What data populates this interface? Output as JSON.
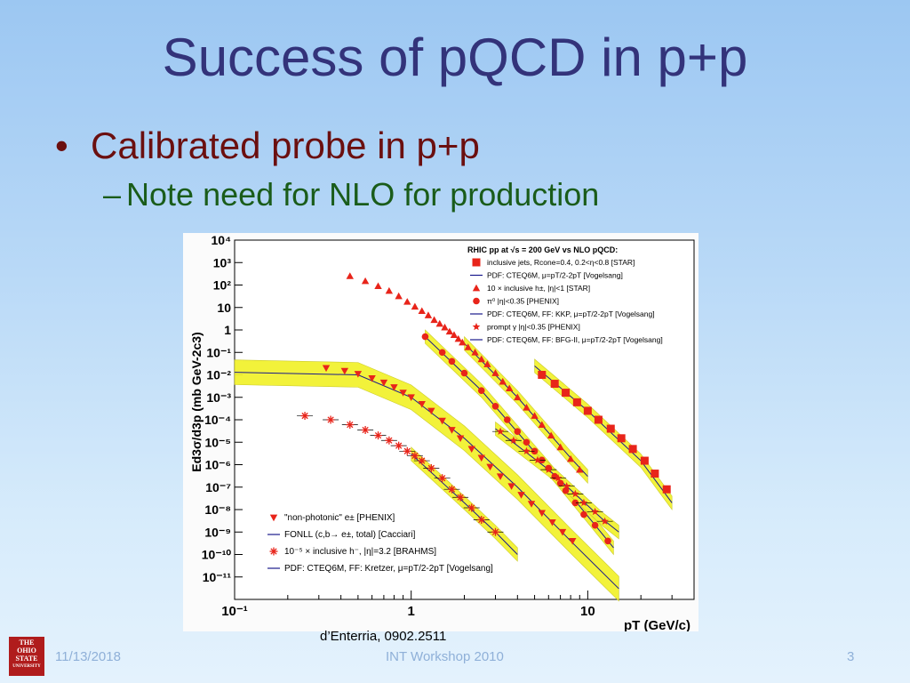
{
  "slide": {
    "title": "Success of pQCD in p+p",
    "bullet1": "Calibrated probe in p+p",
    "bullet1_marker": "•",
    "bullet2": "Note need for NLO for production",
    "bullet2_marker": "–",
    "credit": "d’Enterria, 0902.2511",
    "footer_date": "11/13/2018",
    "footer_center": "INT Workshop 2010",
    "footer_page": "3",
    "logo_lines": [
      "THE",
      "OHIO",
      "STATE",
      "UNIVERSITY"
    ]
  },
  "colors": {
    "title": "#33337a",
    "bullet1": "#6b0f0f",
    "bullet2": "#1a5c1a",
    "data": "#e8241a",
    "band": "#f2f230",
    "theory": "#1a1a8c"
  },
  "chart_data": {
    "type": "scatter",
    "xscale": "log",
    "yscale": "log",
    "xlim": [
      0.1,
      40
    ],
    "ylim": [
      1e-12,
      10000.0
    ],
    "xlabel": "pT (GeV/c)",
    "ylabel": "Ed3σ/d3p (mb GeV-2c3)",
    "x_tick_labels": [
      "10⁻¹",
      "1",
      "10"
    ],
    "x_tick_values": [
      0.1,
      1,
      10
    ],
    "y_tick_labels": [
      "10⁴",
      "10³",
      "10²",
      "10",
      "1",
      "10⁻¹",
      "10⁻²",
      "10⁻³",
      "10⁻⁴",
      "10⁻⁵",
      "10⁻⁶",
      "10⁻⁷",
      "10⁻⁸",
      "10⁻⁹",
      "10⁻¹⁰",
      "10⁻¹¹"
    ],
    "y_tick_values": [
      10000.0,
      1000.0,
      100.0,
      10,
      1,
      0.1,
      0.01,
      0.001,
      0.0001,
      1e-05,
      1e-06,
      1e-07,
      1e-08,
      1e-09,
      1e-10,
      1e-11
    ],
    "legend_top": {
      "header": "RHIC pp at √s = 200 GeV vs NLO pQCD:",
      "entries": [
        {
          "marker": "square",
          "label": "inclusive jets, Rcone=0.4, 0.2<η<0.8 [STAR]"
        },
        {
          "marker": "line",
          "label": "PDF: CTEQ6M, μ=pT/2-2pT [Vogelsang]"
        },
        {
          "marker": "triangle-up",
          "label": "10 × inclusive h±, |η|<1 [STAR]"
        },
        {
          "marker": "circle",
          "label": "π⁰ |η|<0.35 [PHENIX]"
        },
        {
          "marker": "line",
          "label": "PDF: CTEQ6M, FF: KKP, μ=pT/2-2pT [Vogelsang]"
        },
        {
          "marker": "star",
          "label": "prompt γ |η|<0.35 [PHENIX]"
        },
        {
          "marker": "line",
          "label": "PDF: CTEQ6M, FF: BFG-II, μ=pT/2-2pT [Vogelsang]"
        }
      ]
    },
    "legend_bottom": {
      "entries": [
        {
          "marker": "triangle-down",
          "label": "\"non-photonic\" e± [PHENIX]"
        },
        {
          "marker": "line",
          "label": "FONLL (c,b→ e±, total) [Cacciari]"
        },
        {
          "marker": "asterisk",
          "label": "10⁻⁵ × inclusive h⁻, |η|=3.2 [BRAHMS]"
        },
        {
          "marker": "line",
          "label": "PDF: CTEQ6M, FF: Kretzer, μ=pT/2-2pT [Vogelsang]"
        }
      ]
    },
    "series": [
      {
        "name": "inclusive jets [STAR]",
        "marker": "square",
        "x": [
          5.5,
          6.5,
          7.5,
          8.7,
          10,
          11.5,
          13.5,
          15.5,
          18,
          21,
          24,
          28
        ],
        "y": [
          0.01,
          0.004,
          0.0016,
          0.0006,
          0.00025,
          0.0001,
          4e-05,
          1.5e-05,
          5e-06,
          1.5e-06,
          4e-07,
          8e-08
        ]
      },
      {
        "name": "10 × inclusive h± [STAR]",
        "marker": "triangle-up",
        "x": [
          0.45,
          0.55,
          0.65,
          0.75,
          0.85,
          0.95,
          1.05,
          1.15,
          1.25,
          1.35,
          1.45,
          1.55,
          1.65,
          1.75,
          1.85,
          1.95,
          2.1,
          2.3,
          2.5,
          2.7,
          3.0,
          3.3,
          3.6,
          4.0,
          4.5,
          5.0,
          5.5,
          6.2,
          7.0,
          8.0,
          9.0
        ],
        "y": [
          250,
          150,
          90,
          55,
          32,
          18,
          11,
          7,
          4.5,
          2.8,
          1.9,
          1.3,
          0.85,
          0.6,
          0.4,
          0.28,
          0.17,
          0.1,
          0.05,
          0.03,
          0.012,
          0.005,
          0.0025,
          0.001,
          0.00035,
          0.00015,
          6e-05,
          2e-05,
          6e-06,
          1.8e-06,
          6e-07
        ]
      },
      {
        "name": "π⁰ [PHENIX]",
        "marker": "circle",
        "x": [
          1.2,
          1.5,
          1.7,
          2.0,
          2.5,
          3.0,
          3.5,
          4.0,
          4.5,
          5.0,
          5.5,
          6.0,
          6.5,
          7.0,
          7.5,
          8.5,
          9.5,
          11,
          13
        ],
        "y": [
          0.5,
          0.1,
          0.04,
          0.012,
          0.002,
          0.0004,
          0.0001,
          3e-05,
          1e-05,
          4e-06,
          1.6e-06,
          7e-07,
          3e-07,
          1.5e-07,
          7e-08,
          2e-08,
          6e-09,
          2e-09,
          4e-10
        ]
      },
      {
        "name": "prompt γ [PHENIX]",
        "marker": "star",
        "x": [
          3.2,
          3.8,
          4.5,
          5.2,
          6.0,
          6.8,
          7.6,
          8.5,
          9.5,
          11,
          12.5
        ],
        "y": [
          3e-05,
          1.2e-05,
          4e-06,
          1.6e-06,
          6e-07,
          2.5e-07,
          1.1e-07,
          5e-08,
          2e-08,
          8e-09,
          3e-09
        ]
      },
      {
        "name": "non-photonic e± [PHENIX]",
        "marker": "triangle-down",
        "x": [
          0.33,
          0.42,
          0.5,
          0.6,
          0.7,
          0.8,
          0.9,
          1.0,
          1.15,
          1.3,
          1.5,
          1.7,
          1.9,
          2.2,
          2.5,
          2.8,
          3.2,
          3.7,
          4.2,
          4.8,
          5.5,
          6.3,
          7.2,
          8.2
        ],
        "y": [
          0.02,
          0.015,
          0.011,
          0.007,
          0.0045,
          0.0028,
          0.0016,
          0.001,
          0.0005,
          0.00025,
          9e-05,
          3.5e-05,
          1.5e-05,
          5e-06,
          2e-06,
          8e-07,
          3e-07,
          1.1e-07,
          4.5e-08,
          1.8e-08,
          7e-09,
          2.7e-09,
          1e-09,
          4e-10
        ]
      },
      {
        "name": "10⁻⁵ × inclusive h⁻ [BRAHMS]",
        "marker": "asterisk",
        "x": [
          0.25,
          0.35,
          0.45,
          0.55,
          0.65,
          0.75,
          0.85,
          0.95,
          1.05,
          1.15,
          1.3,
          1.5,
          1.7,
          1.9,
          2.2,
          2.5,
          3.0
        ],
        "y": [
          0.00015,
          0.0001,
          6e-05,
          3.5e-05,
          2e-05,
          1.2e-05,
          7e-06,
          4e-06,
          2.5e-06,
          1.5e-06,
          7e-07,
          2.5e-07,
          8e-08,
          3.5e-08,
          1.2e-08,
          3.5e-09,
          1e-09
        ]
      }
    ],
    "theory_curves": [
      {
        "name": "jets NLO",
        "x": [
          5,
          10,
          20,
          30
        ],
        "y": [
          0.025,
          0.00025,
          1.5e-06,
          2e-08
        ]
      },
      {
        "name": "h± NLO",
        "x": [
          2,
          4,
          8,
          10
        ],
        "y": [
          0.25,
          0.001,
          2e-06,
          3e-07
        ]
      },
      {
        "name": "π⁰ NLO",
        "x": [
          1.2,
          2.5,
          6,
          14
        ],
        "y": [
          0.5,
          0.002,
          7e-07,
          2e-10
        ]
      },
      {
        "name": "prompt γ NLO",
        "x": [
          3,
          6,
          12,
          15
        ],
        "y": [
          4e-05,
          6e-07,
          4e-09,
          1e-09
        ]
      },
      {
        "name": "FONLL",
        "x": [
          0.1,
          0.5,
          1,
          2,
          4,
          8,
          15
        ],
        "y": [
          0.013,
          0.01,
          0.001,
          1.5e-05,
          1e-07,
          4e-10,
          3e-12
        ]
      },
      {
        "name": "BRAHMS NLO",
        "x": [
          1,
          2,
          3,
          4
        ],
        "y": [
          3e-06,
          2e-08,
          1e-09,
          1e-10
        ]
      }
    ]
  }
}
